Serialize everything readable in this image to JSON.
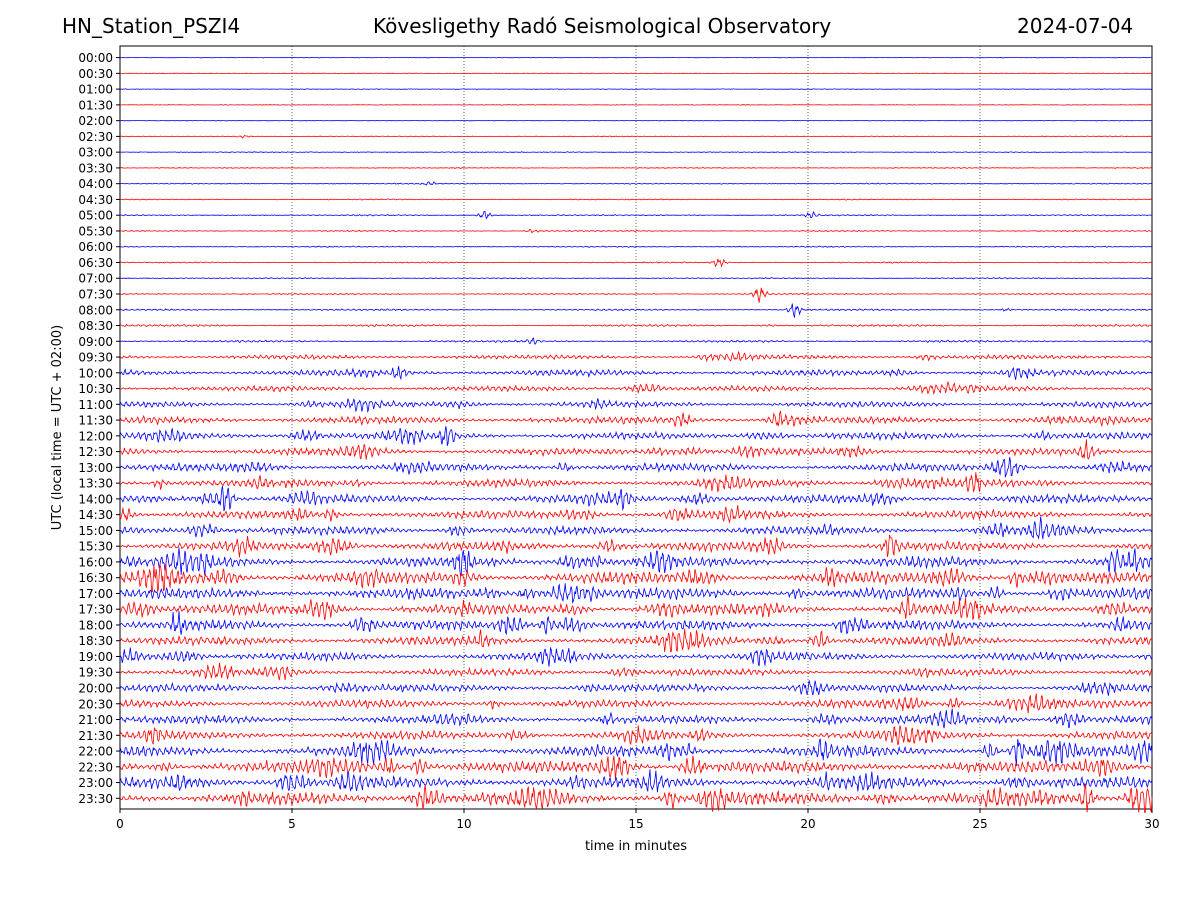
{
  "header": {
    "station": "HN_Station_PSZI4",
    "observatory": "Kövesligethy Radó Seismological Observatory",
    "date": "2024-07-04"
  },
  "chart_data": {
    "type": "line",
    "title": "Kövesligethy Radó Seismological Observatory",
    "xlabel": "time in minutes",
    "ylabel": "UTC (local time = UTC + 02:00)",
    "xlim": [
      0,
      30
    ],
    "xticks": [
      0,
      5,
      10,
      15,
      20,
      25,
      30
    ],
    "grid_x": [
      5,
      10,
      15,
      20,
      25
    ],
    "row_labels": [
      "00:00",
      "00:30",
      "01:00",
      "01:30",
      "02:00",
      "02:30",
      "03:00",
      "03:30",
      "04:00",
      "04:30",
      "05:00",
      "05:30",
      "06:00",
      "06:30",
      "07:00",
      "07:30",
      "08:00",
      "08:30",
      "09:00",
      "09:30",
      "10:00",
      "10:30",
      "11:00",
      "11:30",
      "12:00",
      "12:30",
      "13:00",
      "13:30",
      "14:00",
      "14:30",
      "15:00",
      "15:30",
      "16:00",
      "16:30",
      "17:00",
      "17:30",
      "18:00",
      "18:30",
      "19:00",
      "19:30",
      "20:00",
      "20:30",
      "21:00",
      "21:30",
      "22:00",
      "22:30",
      "23:00",
      "23:30"
    ],
    "trace_colors": [
      "#0000ff",
      "#ff0000"
    ],
    "activity_level": [
      0.02,
      0.02,
      0.02,
      0.02,
      0.02,
      0.05,
      0.05,
      0.05,
      0.07,
      0.07,
      0.08,
      0.07,
      0.08,
      0.08,
      0.08,
      0.08,
      0.12,
      0.15,
      0.15,
      0.35,
      0.45,
      0.4,
      0.45,
      0.55,
      0.55,
      0.55,
      0.6,
      0.6,
      0.65,
      0.65,
      0.65,
      0.7,
      0.8,
      0.95,
      0.85,
      0.8,
      0.75,
      0.7,
      0.65,
      0.55,
      0.6,
      0.6,
      0.65,
      0.65,
      0.85,
      0.9,
      0.9,
      1.0
    ],
    "events": [
      {
        "row": "02:30",
        "minute": 3.6,
        "amplitude": 0.25
      },
      {
        "row": "04:00",
        "minute": 9.0,
        "amplitude": 0.3
      },
      {
        "row": "05:00",
        "minute": 10.6,
        "amplitude": 0.6
      },
      {
        "row": "05:00",
        "minute": 20.1,
        "amplitude": 0.5
      },
      {
        "row": "05:30",
        "minute": 12.0,
        "amplitude": 0.3
      },
      {
        "row": "06:30",
        "minute": 17.4,
        "amplitude": 0.6
      },
      {
        "row": "07:30",
        "minute": 18.6,
        "amplitude": 1.1
      },
      {
        "row": "08:00",
        "minute": 19.6,
        "amplitude": 1.2
      },
      {
        "row": "09:00",
        "minute": 12.0,
        "amplitude": 0.4
      },
      {
        "row": "12:00",
        "minute": 9.5,
        "amplitude": 1.6
      },
      {
        "row": "12:30",
        "minute": 28.1,
        "amplitude": 1.6
      },
      {
        "row": "13:30",
        "minute": 24.8,
        "amplitude": 1.8
      },
      {
        "row": "14:00",
        "minute": 3.1,
        "amplitude": 2.0
      },
      {
        "row": "15:30",
        "minute": 22.4,
        "amplitude": 1.8
      },
      {
        "row": "16:00",
        "minute": 10.0,
        "amplitude": 2.2
      },
      {
        "row": "16:00",
        "minute": 28.9,
        "amplitude": 1.8
      },
      {
        "row": "17:30",
        "minute": 22.9,
        "amplitude": 2.0
      },
      {
        "row": "18:00",
        "minute": 1.7,
        "amplitude": 1.8
      },
      {
        "row": "22:00",
        "minute": 26.1,
        "amplitude": 2.0
      },
      {
        "row": "23:30",
        "minute": 28.1,
        "amplitude": 2.0
      }
    ]
  }
}
